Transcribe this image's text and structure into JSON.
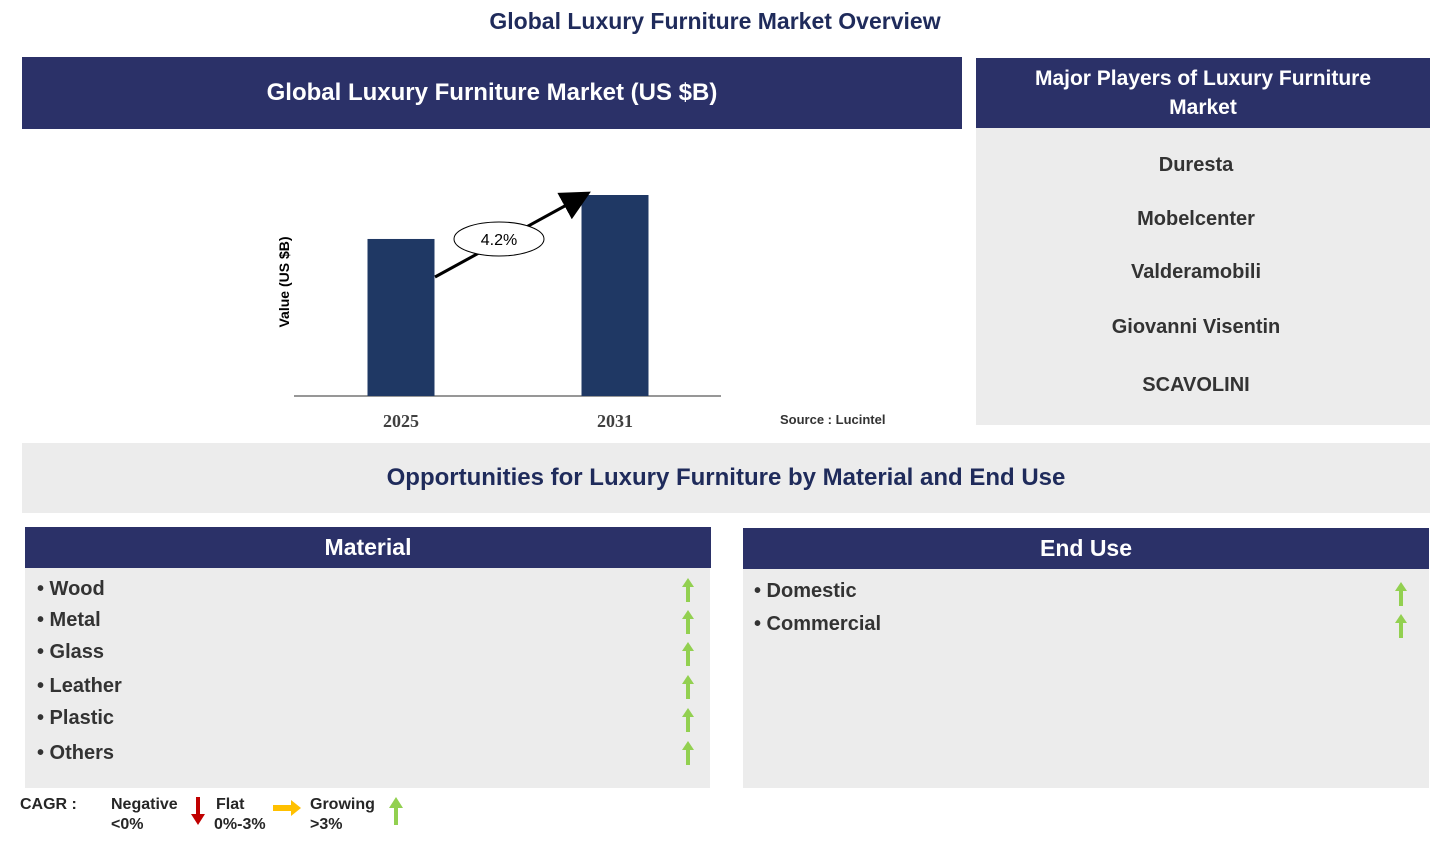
{
  "page": {
    "title": "Global Luxury Furniture Market Overview"
  },
  "market_panel": {
    "title": "Global Luxury Furniture Market (US $B)"
  },
  "chart_data": {
    "type": "bar",
    "categories": [
      "2025",
      "2031"
    ],
    "values": [
      1.0,
      1.28
    ],
    "ylabel": "Value (US $B)",
    "cagr_label": "4.2%",
    "source": "Source : Lucintel",
    "colors": {
      "bar": "#1f3864"
    }
  },
  "players": {
    "title": "Major Players of Luxury Furniture Market",
    "items": [
      "Duresta",
      "Mobelcenter",
      "Valderamobili",
      "Giovanni Visentin",
      "SCAVOLINI"
    ]
  },
  "opportunities": {
    "title": "Opportunities for Luxury Furniture by Material and End Use"
  },
  "material": {
    "title": "Material",
    "items": [
      "• Wood",
      "• Metal",
      "• Glass",
      "• Leather",
      "• Plastic",
      "• Others"
    ],
    "trend": "growing"
  },
  "end_use": {
    "title": "End Use",
    "items": [
      "• Domestic",
      "• Commercial"
    ],
    "trend": "growing"
  },
  "legend": {
    "cagr_label": "CAGR :",
    "negative": "Negative",
    "negative_range": "<0%",
    "flat": "Flat",
    "flat_range": "0%-3%",
    "growing": "Growing",
    "growing_range": ">3%",
    "colors": {
      "negative": "#c00000",
      "flat": "#ffc000",
      "growing": "#92d050",
      "header": "#2b3168"
    }
  }
}
